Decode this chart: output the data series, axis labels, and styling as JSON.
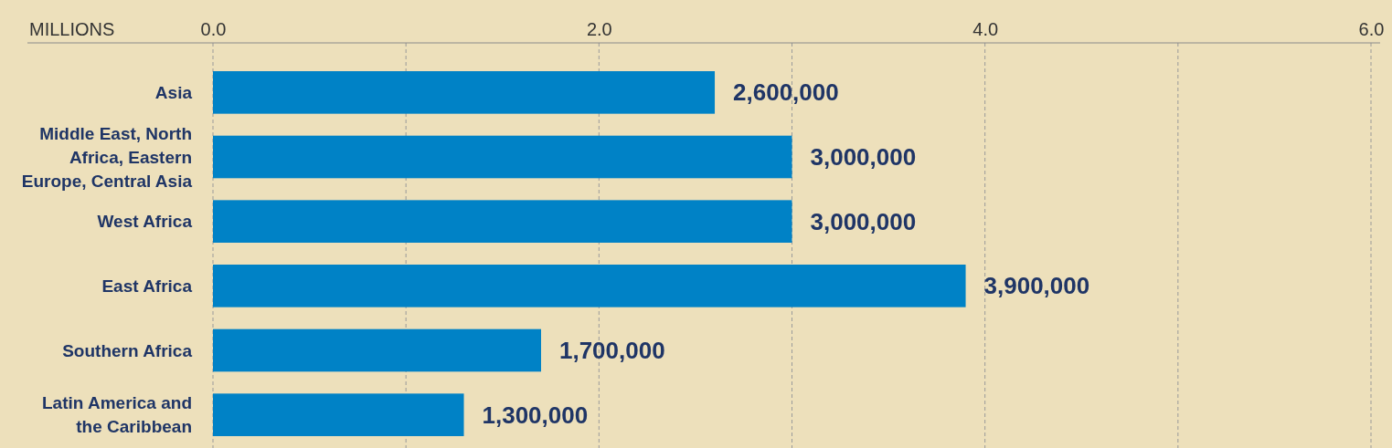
{
  "chart_data": {
    "type": "bar",
    "orientation": "horizontal",
    "xlabel": "MILLIONS",
    "categories": [
      "Asia",
      "Middle East, North Africa, Eastern Europe, Central Asia",
      "West Africa",
      "East Africa",
      "Southern Africa",
      "Latin America and the Caribbean"
    ],
    "values": [
      2.6,
      3.0,
      3.0,
      3.9,
      1.7,
      1.3
    ],
    "annotations": [
      "2,600,000",
      "3,000,000",
      "3,000,000",
      "3,900,000",
      "1,700,000",
      "1,300,000"
    ],
    "color": "#0082c6",
    "xlim": [
      0,
      6
    ],
    "xticks": [
      {
        "value": 0,
        "label": "0.0"
      },
      {
        "value": 1,
        "label": null
      },
      {
        "value": 2,
        "label": "2.0"
      },
      {
        "value": 3,
        "label": null
      },
      {
        "value": 4,
        "label": "4.0"
      },
      {
        "value": 5,
        "label": null
      },
      {
        "value": 6,
        "label": "6.0"
      }
    ],
    "grid": "x"
  }
}
